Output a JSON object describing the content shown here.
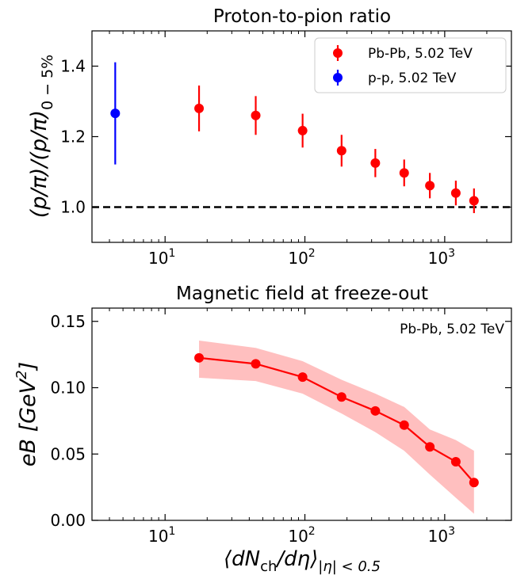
{
  "chart_data": [
    {
      "type": "scatter",
      "title": "Proton-to-pion ratio",
      "ylabel": "(p/π)/(p/π)0 − 5%",
      "ylabel_main": "(p/π)/(p/π)",
      "ylabel_sub": "0 − 5%",
      "xlabel": "",
      "xscale": "log",
      "xlim": [
        3,
        3000
      ],
      "ylim": [
        0.9,
        1.5
      ],
      "yticks": [
        1.0,
        1.2,
        1.4
      ],
      "ytick_labels": [
        "1.0",
        "1.2",
        "1.4"
      ],
      "xticks": [
        10,
        100,
        1000
      ],
      "xtick_base": "10",
      "xtick_exps": [
        "1",
        "2",
        "3"
      ],
      "reference_line": 1.0,
      "legend_position": "top-right",
      "series": [
        {
          "name": "Pb-Pb, 5.02 TeV",
          "color": "#ff0000",
          "x": [
            17.5,
            44.5,
            96.3,
            183,
            319,
            513,
            783,
            1201,
            1620
          ],
          "y": [
            1.28,
            1.26,
            1.217,
            1.16,
            1.125,
            1.097,
            1.061,
            1.04,
            1.018
          ],
          "yerr": [
            0.065,
            0.055,
            0.048,
            0.045,
            0.04,
            0.038,
            0.036,
            0.035,
            0.035
          ]
        },
        {
          "name": "p-p, 5.02 TeV",
          "color": "#0000ff",
          "x": [
            4.4
          ],
          "y": [
            1.266
          ],
          "yerr": [
            0.145
          ]
        }
      ]
    },
    {
      "type": "line",
      "title": "Magnetic field at freeze-out",
      "ylabel": "eB [GeV2]",
      "ylabel_main": "eB [GeV",
      "ylabel_sup": "2",
      "ylabel_end": "]",
      "xlabel": "⟨dNch/dη⟩|η| < 0.5",
      "xlabel_a": "⟨dN",
      "xlabel_sub1": "ch",
      "xlabel_b": "/dη⟩",
      "xlabel_sub2": "|η| < 0.5",
      "xscale": "log",
      "xlim": [
        3,
        3000
      ],
      "ylim": [
        0,
        0.16
      ],
      "yticks": [
        0,
        0.05,
        0.1,
        0.15
      ],
      "ytick_labels": [
        "0.00",
        "0.05",
        "0.10",
        "0.15"
      ],
      "xticks": [
        10,
        100,
        1000
      ],
      "xtick_base": "10",
      "xtick_exps": [
        "1",
        "2",
        "3"
      ],
      "annotation": "Pb-Pb, 5.02 TeV",
      "series": [
        {
          "color": "#ff0000",
          "band_color": "#ffbfbf",
          "x": [
            17.5,
            44.5,
            96.3,
            183,
            319,
            513,
            783,
            1201,
            1620
          ],
          "y": [
            0.1225,
            0.118,
            0.108,
            0.093,
            0.0825,
            0.0718,
            0.0554,
            0.0442,
            0.0285
          ],
          "band_low": [
            0.1075,
            0.105,
            0.0955,
            0.0805,
            0.0665,
            0.0525,
            0.0345,
            0.017,
            0.005
          ],
          "band_high": [
            0.1355,
            0.13,
            0.12,
            0.106,
            0.0955,
            0.0855,
            0.0685,
            0.0605,
            0.0525
          ]
        }
      ]
    }
  ]
}
